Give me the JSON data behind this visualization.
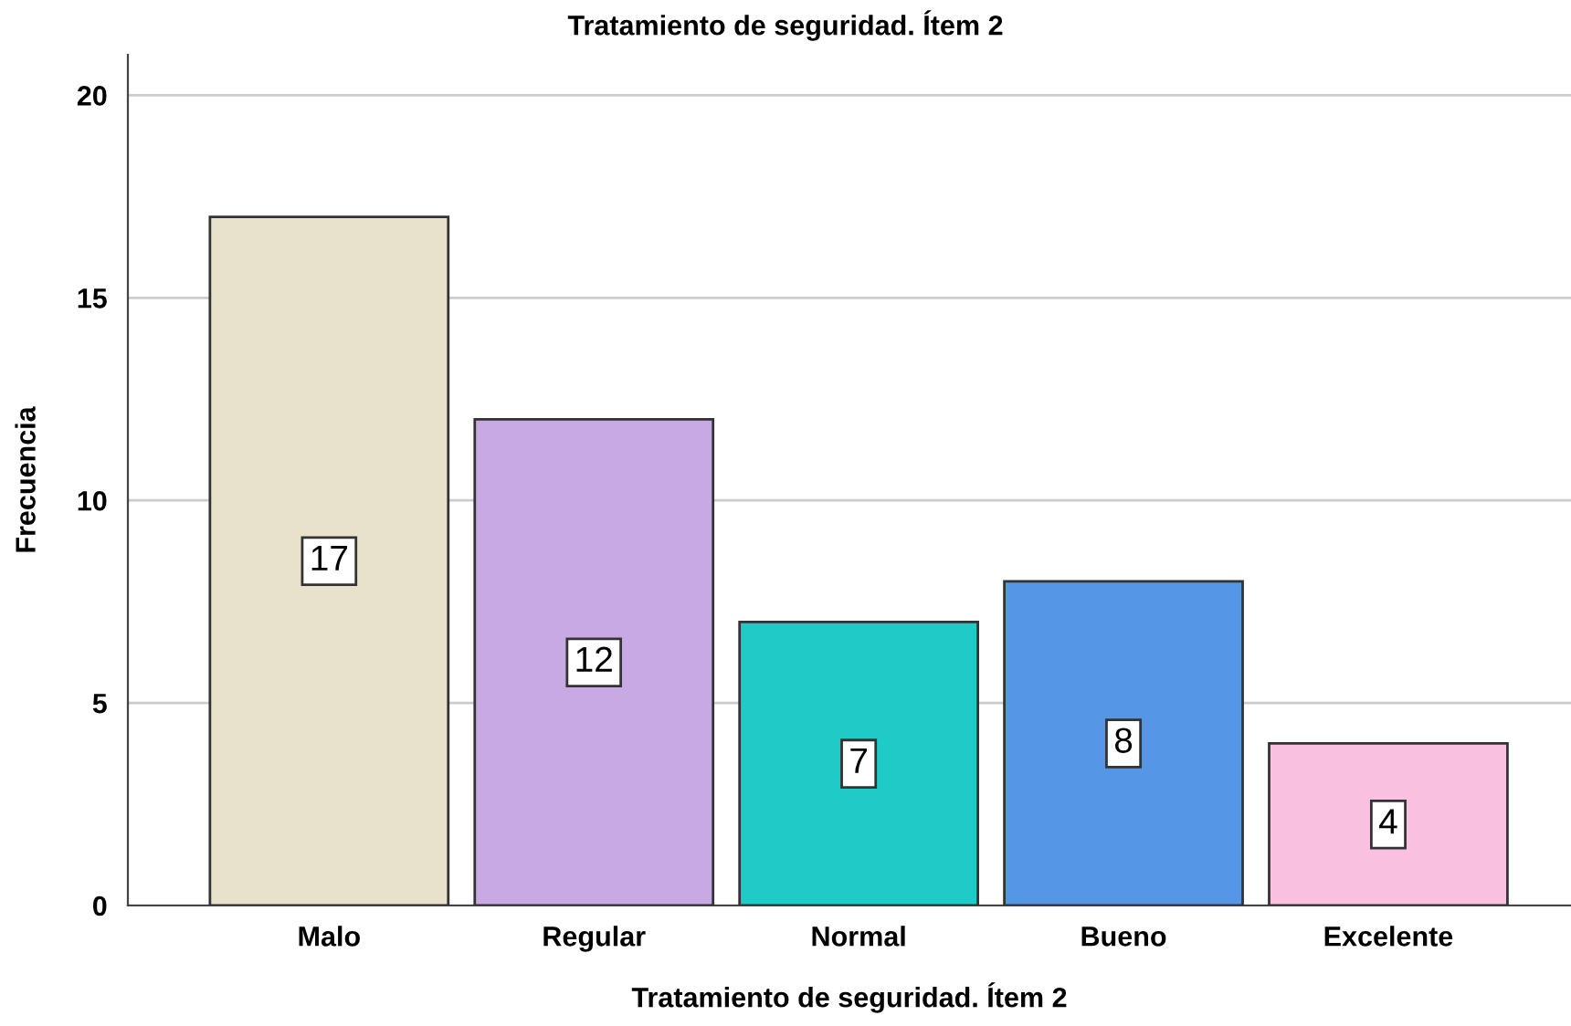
{
  "chart_data": {
    "type": "bar",
    "title": "Tratamiento de seguridad. Ítem 2",
    "xlabel": "Tratamiento de seguridad. Ítem 2",
    "ylabel": "Frecuencia",
    "categories": [
      "Malo",
      "Regular",
      "Normal",
      "Bueno",
      "Excelente"
    ],
    "values": [
      17,
      12,
      7,
      8,
      4
    ],
    "colors": [
      "#e8e1cc",
      "#c9a9e3",
      "#1fcbc6",
      "#5596e6",
      "#f9c0df"
    ],
    "ylim": [
      0,
      21
    ],
    "yticks": [
      0,
      5,
      10,
      15,
      20
    ],
    "grid": "y",
    "data_labels": true
  }
}
